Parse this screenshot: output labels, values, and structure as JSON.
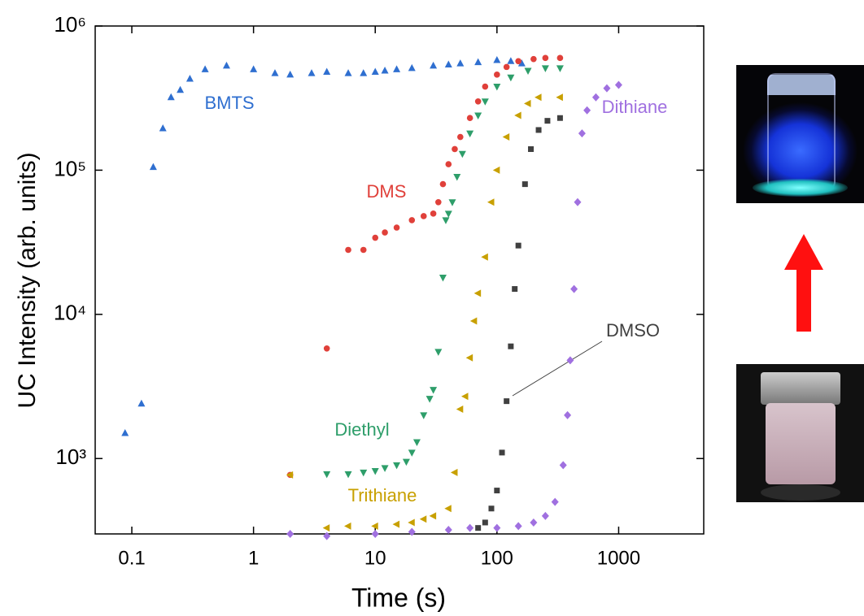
{
  "chart_data": {
    "type": "scatter",
    "xlabel": "Time (s)",
    "ylabel": "UC Intensity (arb. units)",
    "xscale": "log",
    "yscale": "log",
    "xlim": [
      0.05,
      5000
    ],
    "ylim": [
      300,
      1000000
    ],
    "xticks": [
      0.1,
      1,
      10,
      100,
      1000
    ],
    "yticks": [
      {
        "value": 1000,
        "label": "10³"
      },
      {
        "value": 10000,
        "label": "10⁴"
      },
      {
        "value": 100000,
        "label": "10⁵"
      },
      {
        "value": 1000000,
        "label": "10⁶"
      }
    ],
    "series": [
      {
        "name": "BMTS",
        "color": "#2f6fd0",
        "marker": "triangle-up",
        "x": [
          0.088,
          0.12,
          0.15,
          0.18,
          0.21,
          0.25,
          0.3,
          0.4,
          0.6,
          1,
          1.5,
          2,
          3,
          4,
          6,
          8,
          10,
          12,
          15,
          20,
          30,
          40,
          50,
          70,
          100,
          130,
          160
        ],
        "values": [
          1500,
          2400,
          105000,
          195000,
          320000,
          360000,
          430000,
          500000,
          530000,
          500000,
          470000,
          460000,
          470000,
          480000,
          470000,
          470000,
          480000,
          490000,
          500000,
          510000,
          530000,
          540000,
          550000,
          560000,
          580000,
          570000,
          550000
        ]
      },
      {
        "name": "DMS",
        "color": "#e0403a",
        "marker": "circle",
        "x": [
          2,
          4,
          6,
          8,
          10,
          12,
          15,
          20,
          25,
          30,
          33,
          36,
          40,
          45,
          50,
          60,
          70,
          80,
          100,
          120,
          150,
          200,
          250,
          330
        ],
        "values": [
          770,
          5800,
          28000,
          28000,
          34000,
          37000,
          40000,
          45000,
          48000,
          50000,
          60000,
          80000,
          110000,
          140000,
          170000,
          230000,
          300000,
          380000,
          460000,
          520000,
          570000,
          590000,
          600000,
          600000
        ]
      },
      {
        "name": "Diethyl",
        "color": "#2e9e6a",
        "marker": "triangle-down",
        "x": [
          4,
          6,
          8,
          10,
          12,
          15,
          18,
          20,
          22,
          25,
          28,
          30,
          33,
          36,
          38,
          40,
          43,
          47,
          52,
          60,
          70,
          80,
          100,
          130,
          180,
          250,
          330
        ],
        "values": [
          780,
          780,
          800,
          820,
          860,
          900,
          950,
          1100,
          1300,
          2000,
          2600,
          3000,
          5500,
          18000,
          45000,
          50000,
          60000,
          90000,
          130000,
          180000,
          240000,
          300000,
          380000,
          440000,
          490000,
          510000,
          510000
        ]
      },
      {
        "name": "Trithiane",
        "color": "#c8a000",
        "marker": "triangle-left",
        "x": [
          2,
          4,
          6,
          10,
          15,
          20,
          25,
          30,
          40,
          45,
          50,
          55,
          60,
          65,
          70,
          80,
          90,
          100,
          120,
          150,
          180,
          220,
          330
        ],
        "values": [
          770,
          330,
          340,
          340,
          350,
          360,
          380,
          400,
          450,
          800,
          2200,
          2700,
          5000,
          9000,
          14000,
          25000,
          60000,
          100000,
          170000,
          240000,
          290000,
          320000,
          320000
        ]
      },
      {
        "name": "DMSO",
        "color": "#404040",
        "marker": "square",
        "x": [
          70,
          80,
          90,
          100,
          110,
          120,
          130,
          140,
          150,
          170,
          190,
          220,
          260,
          330
        ],
        "values": [
          330,
          360,
          450,
          600,
          1100,
          2500,
          6000,
          15000,
          30000,
          80000,
          140000,
          190000,
          220000,
          230000
        ]
      },
      {
        "name": "Dithiane",
        "color": "#a070e0",
        "marker": "diamond",
        "x": [
          2,
          4,
          10,
          20,
          40,
          60,
          100,
          150,
          200,
          250,
          300,
          350,
          380,
          400,
          430,
          460,
          500,
          550,
          650,
          800,
          1000
        ],
        "values": [
          300,
          290,
          300,
          310,
          320,
          330,
          330,
          340,
          360,
          400,
          500,
          900,
          2000,
          4800,
          15000,
          60000,
          180000,
          260000,
          320000,
          370000,
          390000
        ]
      }
    ]
  }
}
